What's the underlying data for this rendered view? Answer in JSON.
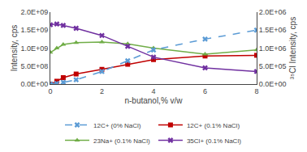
{
  "chart_data": {
    "type": "line",
    "x": [
      0,
      0.25,
      0.5,
      1.0,
      2.0,
      3.0,
      4.0,
      6.0,
      8.0
    ],
    "xlabel": "n-butanol,% v/w",
    "ylabel": "Intensity, cps",
    "y2label": "³⁵Cl Intensity, cps",
    "xlim": [
      0,
      8.0
    ],
    "xticks": [
      0,
      2,
      4,
      6,
      8
    ],
    "ylim": [
      0,
      2000000000.0
    ],
    "yticks": [
      {
        "value": 0,
        "label": "0.0E+00"
      },
      {
        "value": 500000000.0,
        "label": "5.0E+08"
      },
      {
        "value": 1000000000.0,
        "label": "1.0E+09"
      },
      {
        "value": 1500000000.0,
        "label": "1.5E+09"
      },
      {
        "value": 2000000000.0,
        "label": "2.0E+09"
      }
    ],
    "y2lim": [
      0,
      2000000.0
    ],
    "y2ticks": [
      {
        "value": 0,
        "label": "0.0E+00"
      },
      {
        "value": 500000.0,
        "label": "5.0E+05"
      },
      {
        "value": 1000000.0,
        "label": "1.0E+06"
      },
      {
        "value": 1500000.0,
        "label": "1.5E+06"
      },
      {
        "value": 2000000.0,
        "label": "2.0E+06"
      }
    ],
    "grid": false,
    "legend": "bottom",
    "series": [
      {
        "name": "12C+ (0% NaCl)",
        "color": "#5B9BD5",
        "marker": "x",
        "line_style": "dashed",
        "axis": "y2",
        "values": [
          0,
          20000.0,
          50000.0,
          120000.0,
          350000.0,
          650000.0,
          950000.0,
          1250000.0,
          1500000.0
        ]
      },
      {
        "name": "12C+ (0.1% NaCl)",
        "color": "#C00000",
        "marker": "square",
        "line_style": "solid",
        "axis": "y",
        "values": [
          0,
          80000000.0,
          180000000.0,
          280000000.0,
          410000000.0,
          550000000.0,
          680000000.0,
          780000000.0,
          800000000.0
        ]
      },
      {
        "name": "23Na+ (0.1% NaCl)",
        "color": "#70AD47",
        "marker": "triangle-up",
        "line_style": "solid",
        "axis": "y",
        "values": [
          880000000.0,
          1000000000.0,
          1100000000.0,
          1150000000.0,
          1170000000.0,
          1120000000.0,
          1000000000.0,
          830000000.0,
          950000000.0
        ]
      },
      {
        "name": "35Cl+ (0.1% NaCl)",
        "color": "#7030A0",
        "marker": "x",
        "line_style": "solid",
        "axis": "y",
        "values": [
          1650000000.0,
          1670000000.0,
          1630000000.0,
          1550000000.0,
          1350000000.0,
          1050000000.0,
          750000000.0,
          450000000.0,
          350000000.0
        ]
      }
    ]
  }
}
